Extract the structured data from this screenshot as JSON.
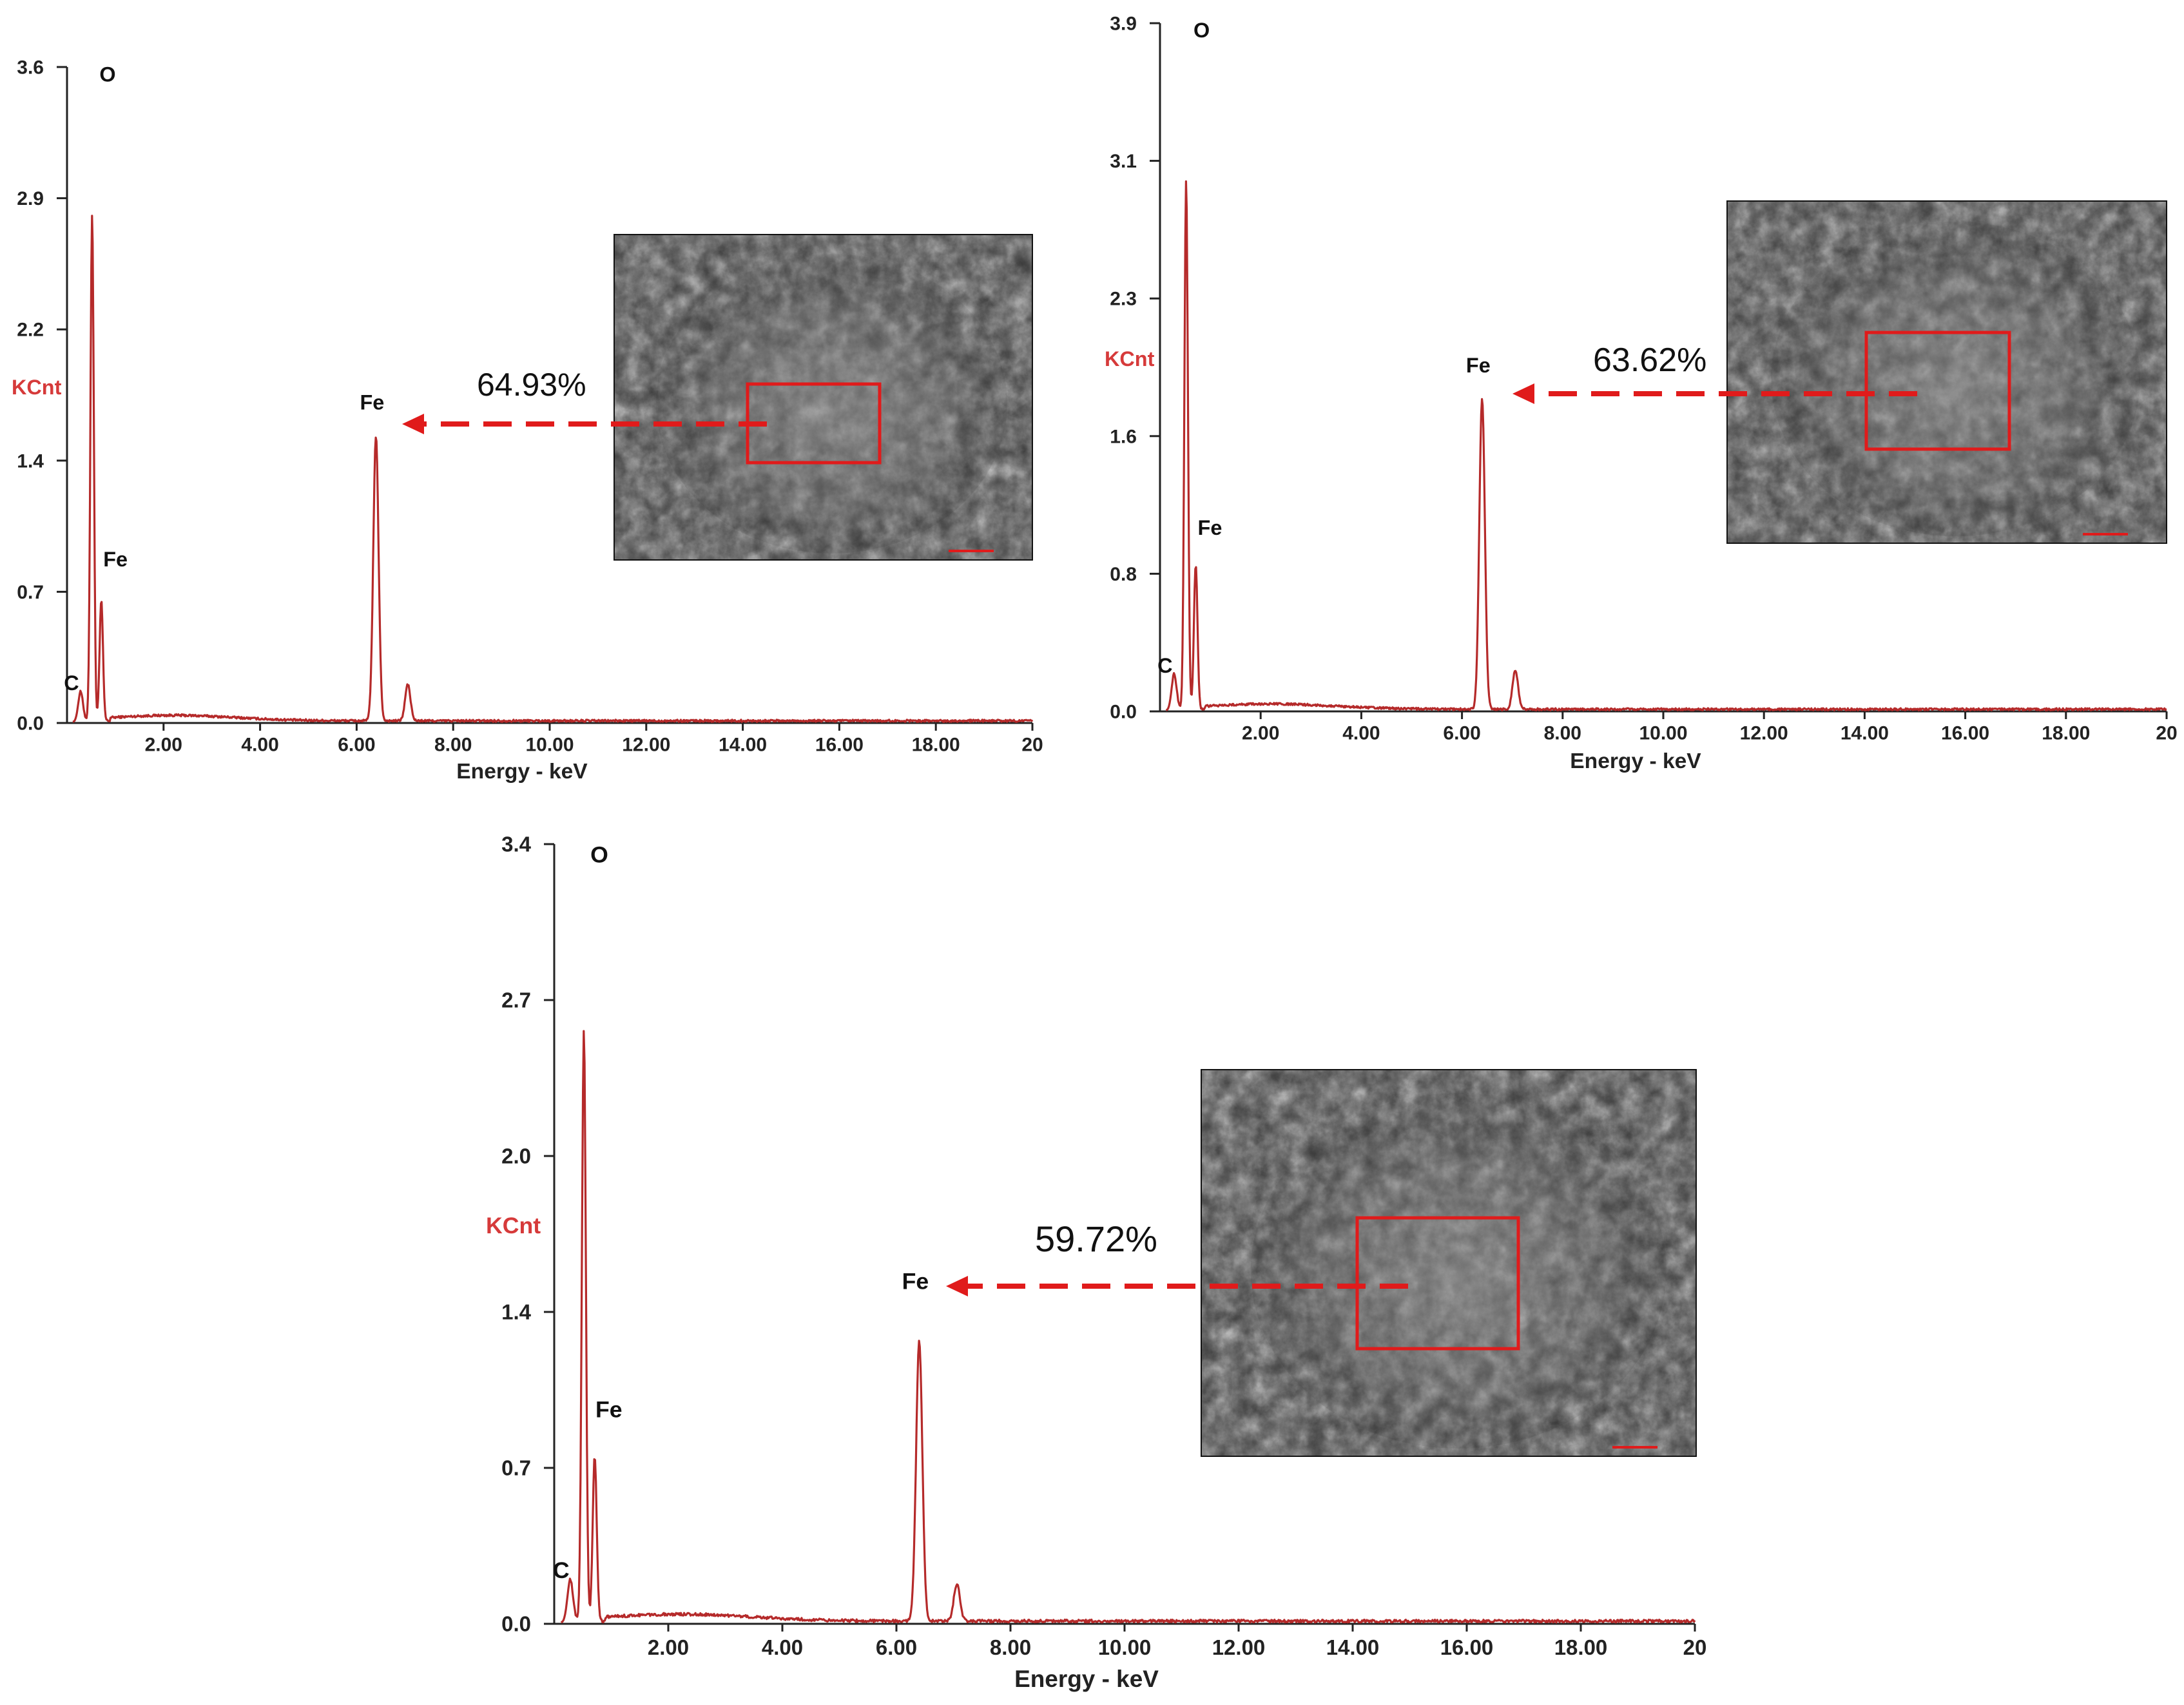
{
  "colors": {
    "spectrum": "#b52a2a",
    "ylabel": "#d63a3a",
    "arrow": "#e01b1b",
    "box": "#e01b1b",
    "axis": "#222222"
  },
  "chart_data": [
    {
      "type": "line",
      "title": "",
      "xlabel": "Energy - keV",
      "ylabel": "KCnt",
      "xlim": [
        0,
        20
      ],
      "ylim": [
        0,
        3.6
      ],
      "x_ticks": [
        2,
        4,
        6,
        8,
        10,
        12,
        14,
        16,
        18,
        20
      ],
      "x_tick_labels": [
        "2.00",
        "4.00",
        "6.00",
        "8.00",
        "10.00",
        "12.00",
        "14.00",
        "16.00",
        "18.00",
        "20"
      ],
      "y_ticks": [
        0,
        0.72,
        1.44,
        2.16,
        2.88,
        3.6
      ],
      "y_tick_labels": [
        "0.0",
        "0.7",
        "1.4",
        "2.2",
        "2.9",
        "3.6"
      ],
      "grid": false,
      "peaks": [
        {
          "x": 0.28,
          "sigma": 0.05,
          "height": 0.16
        },
        {
          "x": 0.52,
          "sigma": 0.035,
          "height": 2.78
        },
        {
          "x": 0.71,
          "sigma": 0.035,
          "height": 0.66
        },
        {
          "x": 6.4,
          "sigma": 0.055,
          "height": 1.56
        },
        {
          "x": 7.06,
          "sigma": 0.055,
          "height": 0.2
        }
      ],
      "peak_labels": [
        {
          "text": "O",
          "x": 0.52,
          "y": 3.52
        },
        {
          "text": "Fe",
          "x": 0.71,
          "y": 0.86
        },
        {
          "text": "C",
          "x": 0.28,
          "y": 0.18
        },
        {
          "text": "Fe",
          "x": 6.4,
          "y": 1.72
        }
      ],
      "annotation": {
        "text": "64.93%",
        "target_element": "Fe",
        "target_x": 6.4,
        "target_y": 1.72
      }
    },
    {
      "type": "line",
      "title": "",
      "xlabel": "Energy - keV",
      "ylabel": "KCnt",
      "xlim": [
        0,
        20
      ],
      "ylim": [
        0,
        3.9
      ],
      "x_ticks": [
        2,
        4,
        6,
        8,
        10,
        12,
        14,
        16,
        18,
        20
      ],
      "x_tick_labels": [
        "2.00",
        "4.00",
        "6.00",
        "8.00",
        "10.00",
        "12.00",
        "14.00",
        "16.00",
        "18.00",
        "20"
      ],
      "y_ticks": [
        0,
        0.78,
        1.56,
        2.34,
        3.12,
        3.9
      ],
      "y_tick_labels": [
        "0.0",
        "0.8",
        "1.6",
        "2.3",
        "3.1",
        "3.9"
      ],
      "grid": false,
      "peaks": [
        {
          "x": 0.28,
          "sigma": 0.05,
          "height": 0.2
        },
        {
          "x": 0.52,
          "sigma": 0.035,
          "height": 3.0
        },
        {
          "x": 0.71,
          "sigma": 0.035,
          "height": 0.82
        },
        {
          "x": 6.4,
          "sigma": 0.055,
          "height": 1.76
        },
        {
          "x": 7.06,
          "sigma": 0.055,
          "height": 0.22
        }
      ],
      "peak_labels": [
        {
          "text": "O",
          "x": 0.52,
          "y": 3.82
        },
        {
          "text": "Fe",
          "x": 0.71,
          "y": 1.0
        },
        {
          "text": "C",
          "x": 0.28,
          "y": 0.22
        },
        {
          "text": "Fe",
          "x": 6.4,
          "y": 1.92
        }
      ],
      "annotation": {
        "text": "63.62%",
        "target_element": "Fe",
        "target_x": 6.4,
        "target_y": 1.79
      }
    },
    {
      "type": "line",
      "title": "",
      "xlabel": "Energy - keV",
      "ylabel": "KCnt",
      "xlim": [
        0,
        20
      ],
      "ylim": [
        0,
        3.4
      ],
      "x_ticks": [
        2,
        4,
        6,
        8,
        10,
        12,
        14,
        16,
        18,
        20
      ],
      "x_tick_labels": [
        "2.00",
        "4.00",
        "6.00",
        "8.00",
        "10.00",
        "12.00",
        "14.00",
        "16.00",
        "18.00",
        "20"
      ],
      "y_ticks": [
        0,
        0.68,
        1.36,
        2.04,
        2.72,
        3.4
      ],
      "y_tick_labels": [
        "0.0",
        "0.7",
        "1.4",
        "2.0",
        "2.7",
        "3.4"
      ],
      "grid": false,
      "peaks": [
        {
          "x": 0.28,
          "sigma": 0.05,
          "height": 0.18
        },
        {
          "x": 0.52,
          "sigma": 0.035,
          "height": 2.58
        },
        {
          "x": 0.71,
          "sigma": 0.035,
          "height": 0.72
        },
        {
          "x": 6.4,
          "sigma": 0.055,
          "height": 1.22
        },
        {
          "x": 7.06,
          "sigma": 0.055,
          "height": 0.16
        }
      ],
      "peak_labels": [
        {
          "text": "O",
          "x": 0.52,
          "y": 3.32
        },
        {
          "text": "Fe",
          "x": 0.71,
          "y": 0.9
        },
        {
          "text": "C",
          "x": 0.28,
          "y": 0.2
        },
        {
          "text": "Fe",
          "x": 6.4,
          "y": 1.46
        }
      ],
      "annotation": {
        "text": "59.72%",
        "target_element": "Fe",
        "target_x": 6.4,
        "target_y": 1.48
      }
    }
  ]
}
